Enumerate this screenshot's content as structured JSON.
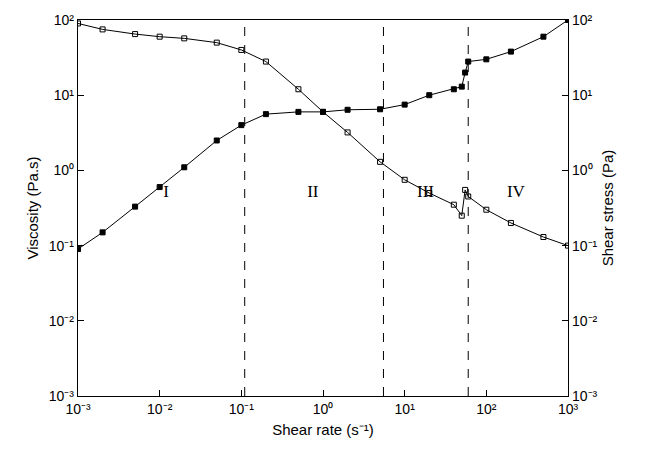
{
  "chart_data": {
    "type": "scatter",
    "log": true,
    "grid": false,
    "x_label": "Shear rate (s⁻¹)",
    "y_label": "Viscosity (Pa.s)",
    "y2_label": "Shear stress (Pa)",
    "xlim": [
      0.001,
      1000
    ],
    "ylim": [
      0.001,
      100
    ],
    "y2lim": [
      0.001,
      100
    ],
    "xticks": [
      {
        "value": 0.001,
        "label": "10⁻³"
      },
      {
        "value": 0.01,
        "label": "10⁻²"
      },
      {
        "value": 0.1,
        "label": "10⁻¹"
      },
      {
        "value": 1,
        "label": "10⁰"
      },
      {
        "value": 10,
        "label": "10¹"
      },
      {
        "value": 100,
        "label": "10²"
      },
      {
        "value": 1000,
        "label": "10³"
      }
    ],
    "yticks": [
      {
        "value": 0.001,
        "label": "10⁻³"
      },
      {
        "value": 0.01,
        "label": "10⁻²"
      },
      {
        "value": 0.1,
        "label": "10⁻¹"
      },
      {
        "value": 1,
        "label": "10⁰"
      },
      {
        "value": 10,
        "label": "10¹"
      },
      {
        "value": 100,
        "label": "10²"
      }
    ],
    "y2ticks": [
      {
        "value": 0.001,
        "label": "10⁻³"
      },
      {
        "value": 0.01,
        "label": "10⁻²"
      },
      {
        "value": 0.1,
        "label": "10⁻¹"
      },
      {
        "value": 1,
        "label": "10⁰"
      },
      {
        "value": 10,
        "label": "10¹"
      },
      {
        "value": 100,
        "label": "10²"
      }
    ],
    "x": [
      0.001,
      0.002,
      0.005,
      0.01,
      0.02,
      0.05,
      0.1,
      0.2,
      0.5,
      1,
      2,
      5,
      10,
      20,
      40,
      50,
      55,
      60,
      100,
      200,
      500,
      1000
    ],
    "series": [
      {
        "name": "Viscosity",
        "color": "#000000",
        "marker": "square-open",
        "line_style": "solid",
        "values": [
          90,
          75,
          65,
          60,
          57,
          50,
          40,
          28,
          12,
          6,
          3.2,
          1.3,
          0.75,
          0.5,
          0.35,
          0.25,
          0.55,
          0.45,
          0.3,
          0.2,
          0.13,
          0.1
        ]
      },
      {
        "name": "Shear stress",
        "color": "#000000",
        "marker": "square",
        "line_style": "solid",
        "axis": "y2",
        "values": [
          0.09,
          0.15,
          0.33,
          0.6,
          1.1,
          2.5,
          4,
          5.6,
          6,
          6,
          6.4,
          6.5,
          7.5,
          10,
          12,
          13,
          20,
          28,
          30,
          38,
          60,
          100
        ]
      }
    ],
    "boundaries": [
      0.11,
      5.5,
      60
    ],
    "annotations": [
      {
        "text": "I",
        "x": 0.012,
        "y": 0.5
      },
      {
        "text": "II",
        "x": 0.75,
        "y": 0.5
      },
      {
        "text": "III",
        "x": 18,
        "y": 0.5
      },
      {
        "text": "IV",
        "x": 230,
        "y": 0.5
      }
    ]
  }
}
